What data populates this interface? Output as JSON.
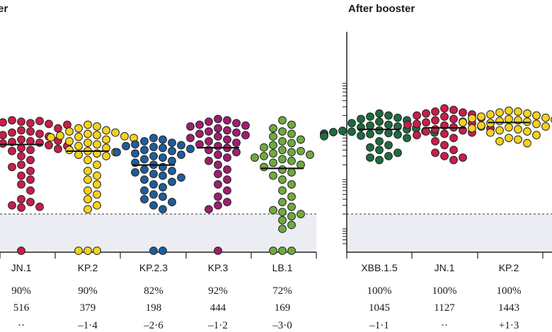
{
  "chart_data": [
    {
      "type": "scatter",
      "subtype": "dot-plot with geometric mean bars",
      "title": "er",
      "ylim": [
        5,
        9000
      ],
      "scale": "log",
      "shaded_region": "below threshold",
      "threshold": 20,
      "categories": [
        "JN.1",
        "KP.2",
        "KP.2.3",
        "KP.3",
        "LB.1"
      ],
      "colors": [
        "#c81e4a",
        "#f4d21f",
        "#1f5d99",
        "#9c1f6e",
        "#6faa3c"
      ],
      "series": [
        {
          "values": [
            1500,
            1400,
            1600,
            1550,
            1450,
            1350,
            1200,
            1100,
            1250,
            1300,
            1000,
            950,
            900,
            850,
            800,
            750,
            700,
            650,
            600,
            620,
            580,
            560,
            540,
            520,
            500,
            480,
            460,
            440,
            420,
            400,
            380,
            300,
            250,
            200,
            180,
            150,
            120,
            100,
            80,
            60,
            40,
            35,
            30,
            28,
            27,
            5
          ]
        },
        {
          "values": [
            1300,
            1200,
            1100,
            1000,
            950,
            900,
            850,
            800,
            780,
            760,
            740,
            720,
            700,
            650,
            600,
            560,
            520,
            480,
            440,
            400,
            380,
            360,
            340,
            320,
            300,
            250,
            200,
            150,
            120,
            100,
            80,
            60,
            50,
            40,
            30,
            25,
            5,
            5,
            5
          ]
        },
        {
          "values": [
            700,
            650,
            600,
            560,
            520,
            500,
            480,
            460,
            440,
            420,
            400,
            380,
            360,
            340,
            320,
            300,
            280,
            260,
            240,
            220,
            200,
            180,
            160,
            150,
            140,
            130,
            120,
            110,
            100,
            90,
            80,
            70,
            60,
            50,
            45,
            40,
            35,
            30,
            25,
            5,
            5
          ]
        },
        {
          "values": [
            1700,
            1600,
            1500,
            1400,
            1300,
            1250,
            1200,
            1100,
            1000,
            950,
            900,
            850,
            800,
            750,
            700,
            650,
            600,
            560,
            520,
            480,
            440,
            400,
            360,
            320,
            280,
            240,
            200,
            160,
            130,
            100,
            80,
            60,
            45,
            35,
            30,
            25,
            5
          ]
        },
        {
          "values": [
            1600,
            1300,
            1100,
            950,
            850,
            750,
            650,
            600,
            550,
            500,
            450,
            400,
            380,
            360,
            340,
            320,
            300,
            280,
            260,
            240,
            220,
            200,
            180,
            160,
            140,
            120,
            100,
            80,
            60,
            45,
            35,
            28,
            24,
            22,
            20,
            18,
            15,
            12,
            10,
            5,
            5,
            5
          ]
        }
      ],
      "geometric_means": [
        516,
        379,
        198,
        444,
        169
      ],
      "rows": [
        [
          "90%",
          "90%",
          "82%",
          "92%",
          "72%"
        ],
        [
          "516",
          "379",
          "198",
          "444",
          "169"
        ],
        [
          "··",
          "–1·4",
          "–2·6",
          "–1·2",
          "–3·0"
        ]
      ]
    },
    {
      "type": "scatter",
      "subtype": "dot-plot with geometric mean bars",
      "title": "After booster",
      "ylim": [
        5,
        9000
      ],
      "scale": "log",
      "shaded_region": "below threshold",
      "threshold": 20,
      "categories": [
        "XBB.1.5",
        "JN.1",
        "KP.2"
      ],
      "colors": [
        "#1e6b3e",
        "#c81e4a",
        "#f4d21f"
      ],
      "series": [
        {
          "values": [
            2200,
            2000,
            1900,
            1800,
            1700,
            1600,
            1500,
            1400,
            1300,
            1250,
            1200,
            1150,
            1100,
            1050,
            1000,
            980,
            960,
            940,
            920,
            900,
            880,
            860,
            840,
            820,
            800,
            780,
            760,
            700,
            600,
            500,
            450,
            400,
            350,
            300,
            280,
            250
          ]
        },
        {
          "values": [
            2800,
            2600,
            2400,
            2300,
            2200,
            2100,
            2000,
            1900,
            1800,
            1700,
            1600,
            1500,
            1450,
            1400,
            1350,
            1300,
            1250,
            1200,
            1150,
            1100,
            1050,
            1000,
            950,
            900,
            850,
            800,
            700,
            600,
            500,
            400,
            350,
            300,
            280,
            250
          ]
        },
        {
          "values": [
            2500,
            2400,
            2300,
            2200,
            2100,
            2000,
            1900,
            1800,
            1750,
            1700,
            1650,
            1600,
            1550,
            1500,
            1450,
            1400,
            1350,
            1300,
            1250,
            1200,
            1150,
            1100,
            1050,
            1000,
            950,
            900,
            800,
            700,
            650,
            600,
            550
          ]
        }
      ],
      "geometric_means": [
        1045,
        1127,
        1443
      ],
      "rows": [
        [
          "100%",
          "100%",
          "100%"
        ],
        [
          "1045",
          "1127",
          "1443"
        ],
        [
          "–1·1",
          "··",
          "+1·3"
        ]
      ]
    }
  ]
}
